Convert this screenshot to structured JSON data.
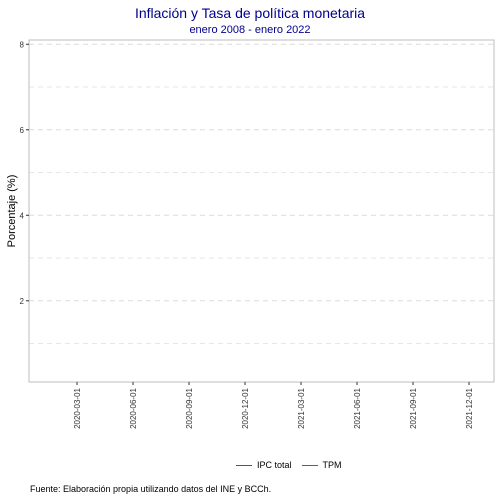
{
  "chart_data": {
    "type": "line",
    "title": "Inflación y Tasa de política monetaria",
    "subtitle": "enero 2008 - enero 2022",
    "xlabel": "",
    "ylabel": "Porcentaje (%)",
    "caption": "Fuente: Elaboración propia utilizando datos del INE y BCCh.",
    "x_ticks": [
      "2020-03-01",
      "2020-06-01",
      "2020-09-01",
      "2020-12-01",
      "2021-03-01",
      "2021-06-01",
      "2021-09-01",
      "2021-12-01"
    ],
    "y_ticks": [
      2,
      4,
      6,
      8
    ],
    "ylim": [
      0.1,
      8.1
    ],
    "grid": true,
    "legend_position": "bottom",
    "series": [
      {
        "name": "IPC total",
        "color": "#1f5fbf",
        "x": [],
        "values": []
      },
      {
        "name": "TPM",
        "color": "#c0392b",
        "x": [],
        "values": []
      }
    ]
  }
}
